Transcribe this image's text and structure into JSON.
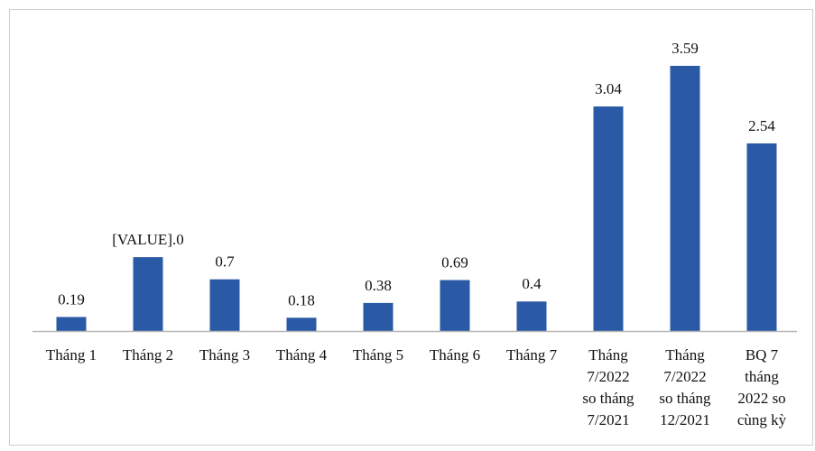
{
  "chart_data": {
    "type": "bar",
    "categories": [
      [
        "Tháng 1"
      ],
      [
        "Tháng 2"
      ],
      [
        "Tháng 3"
      ],
      [
        "Tháng 4"
      ],
      [
        "Tháng 5"
      ],
      [
        "Tháng 6"
      ],
      [
        "Tháng 7"
      ],
      [
        "Tháng",
        "7/2022",
        "so tháng",
        "7/2021"
      ],
      [
        "Tháng",
        "7/2022",
        "so tháng",
        "12/2021"
      ],
      [
        "BQ 7",
        "tháng",
        "2022 so",
        "cùng kỳ"
      ]
    ],
    "values": [
      0.19,
      1.0,
      0.7,
      0.18,
      0.38,
      0.69,
      0.4,
      3.04,
      3.59,
      2.54
    ],
    "value_labels": [
      "0.19",
      "[VALUE].0",
      "0.7",
      "0.18",
      "0.38",
      "0.69",
      "0.4",
      "3.04",
      "3.59",
      "2.54"
    ],
    "bar_color": "#2a5aa6",
    "ylim": [
      0,
      3.59
    ],
    "grid": false
  }
}
